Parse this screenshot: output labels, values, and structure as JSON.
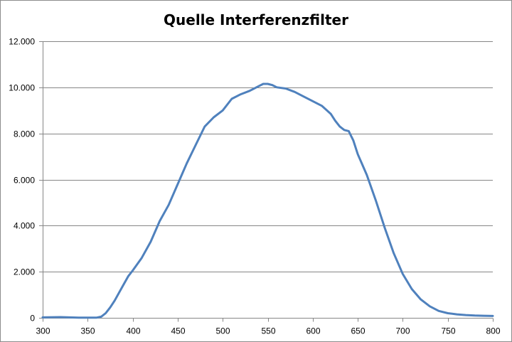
{
  "chart_data": {
    "type": "line",
    "title": "Quelle Interferenzfilter",
    "xlabel": "",
    "ylabel": "",
    "xlim": [
      300,
      800
    ],
    "ylim": [
      0,
      12000
    ],
    "x_ticks": [
      300,
      350,
      400,
      450,
      500,
      550,
      600,
      650,
      700,
      750,
      800
    ],
    "x_tick_labels": [
      "300",
      "350",
      "400",
      "450",
      "500",
      "550",
      "600",
      "650",
      "700",
      "750",
      "800"
    ],
    "y_ticks": [
      0,
      2000,
      4000,
      6000,
      8000,
      10000,
      12000
    ],
    "y_tick_labels": [
      "0",
      "2.000",
      "4.000",
      "6.000",
      "8.000",
      "10.000",
      "12.000"
    ],
    "grid": true,
    "legend": "none",
    "series": [
      {
        "color": "#4f81bd",
        "x": [
          300,
          320,
          340,
          360,
          365,
          370,
          375,
          380,
          385,
          390,
          395,
          400,
          410,
          420,
          430,
          440,
          450,
          460,
          470,
          480,
          490,
          500,
          510,
          520,
          530,
          540,
          545,
          550,
          555,
          560,
          570,
          580,
          590,
          600,
          610,
          620,
          625,
          630,
          635,
          640,
          645,
          650,
          660,
          670,
          680,
          690,
          700,
          710,
          720,
          730,
          740,
          750,
          760,
          770,
          780,
          790,
          800
        ],
        "y": [
          20,
          30,
          10,
          10,
          50,
          200,
          450,
          750,
          1100,
          1450,
          1800,
          2050,
          2600,
          3300,
          4200,
          4900,
          5800,
          6700,
          7500,
          8300,
          8700,
          9000,
          9500,
          9700,
          9850,
          10050,
          10150,
          10150,
          10100,
          10000,
          9950,
          9800,
          9600,
          9400,
          9200,
          8850,
          8550,
          8300,
          8150,
          8100,
          7700,
          7100,
          6200,
          5100,
          3900,
          2800,
          1900,
          1250,
          800,
          500,
          300,
          200,
          150,
          120,
          100,
          90,
          80
        ]
      }
    ]
  }
}
